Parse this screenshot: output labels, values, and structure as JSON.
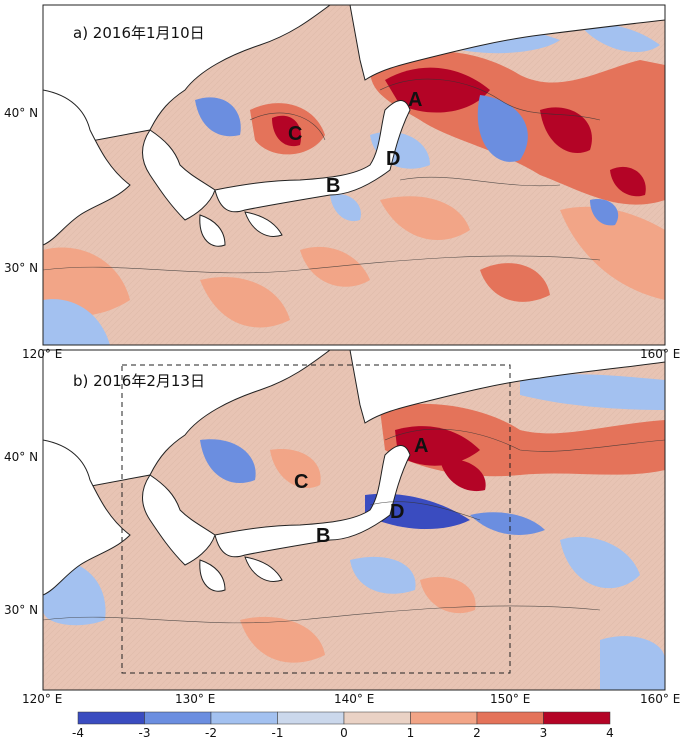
{
  "panels": [
    {
      "title": "a) 2016年1月10日",
      "regions": [
        "A",
        "B",
        "C",
        "D"
      ]
    },
    {
      "title": "b) 2016年2月13日",
      "regions": [
        "A",
        "B",
        "C",
        "D"
      ]
    }
  ],
  "lat_labels": [
    "40° N",
    "30° N"
  ],
  "lon_labels": [
    "120° E",
    "130° E",
    "140° E",
    "150° E",
    "160° E"
  ],
  "colorbar": {
    "ticks": [
      "-4",
      "-3",
      "-2",
      "-1",
      "0",
      "1",
      "2",
      "3",
      "4"
    ],
    "colors": [
      "#3a4cc0",
      "#6b8ee0",
      "#a3c1f0",
      "#cbd8ec",
      "#ead2c5",
      "#f2a587",
      "#e4735a",
      "#b40426"
    ]
  },
  "colors": {
    "land": "#ffffff",
    "ocean_base": "#e8c4b4",
    "warm": "#e8876a",
    "cool": "#8eaee8"
  }
}
